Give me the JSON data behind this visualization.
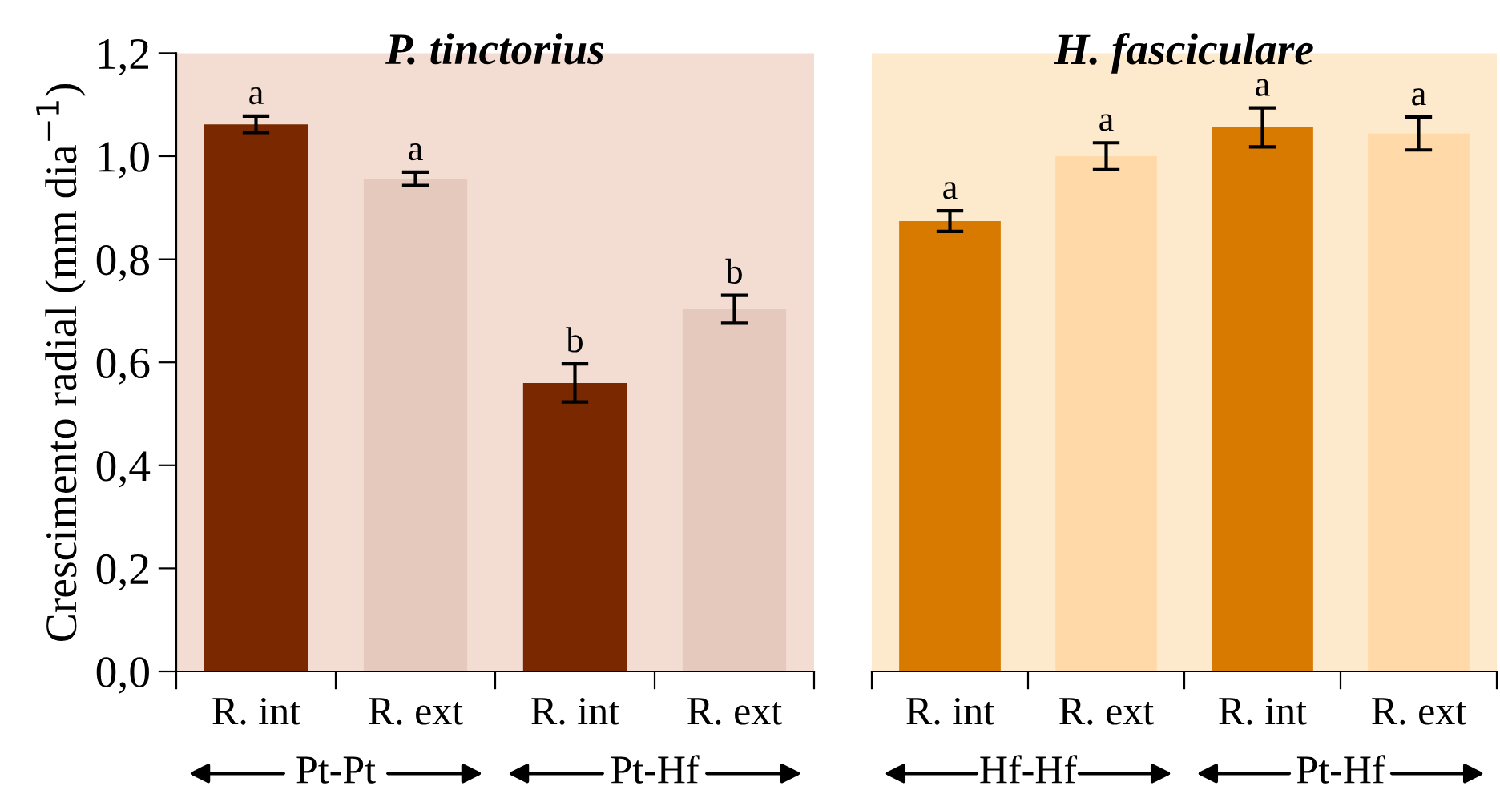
{
  "chart_data": [
    {
      "type": "bar",
      "title": "P. tinctorius",
      "ylabel": "Crescimento radial (mm dia$^{−1}$)",
      "categories": [
        "R. int",
        "R. ext",
        "R. int",
        "R. ext"
      ],
      "values": [
        1.062,
        0.956,
        0.56,
        0.703
      ],
      "errors": [
        0.016,
        0.013,
        0.037,
        0.027
      ],
      "colors": [
        "#7a2800",
        "#e6c9bd",
        "#7a2800",
        "#e6c9bd"
      ],
      "value_labels": [
        "a",
        "a",
        "b",
        "b"
      ],
      "ylim": [
        0,
        1.2
      ],
      "yticks": [
        {
          "value": 0,
          "label": "0,0"
        },
        {
          "value": 0.2,
          "label": "0,2"
        },
        {
          "value": 0.4,
          "label": "0,4"
        },
        {
          "value": 0.6,
          "label": "0,6"
        },
        {
          "value": 0.8,
          "label": "0,8"
        },
        {
          "value": 1.0,
          "label": "1,0"
        },
        {
          "value": 1.2,
          "label": "1,2"
        }
      ],
      "annotations": [
        "Pt-Pt",
        "Pt-Hf"
      ]
    },
    {
      "type": "bar",
      "title": "H. fasciculare",
      "categories": [
        "R. int",
        "R. ext",
        "R. int",
        "R. ext"
      ],
      "values": [
        0.874,
        1.0,
        1.056,
        1.044
      ],
      "errors": [
        0.02,
        0.026,
        0.038,
        0.032
      ],
      "colors": [
        "#d97a00",
        "#ffd9a8",
        "#d97a00",
        "#ffd9a8"
      ],
      "value_labels": [
        "a",
        "a",
        "a",
        "a"
      ],
      "ylim": [
        0,
        1.2
      ],
      "tick_labels": "x",
      "annotations": [
        "Hf-Hf",
        "Pt-Hf"
      ]
    }
  ]
}
